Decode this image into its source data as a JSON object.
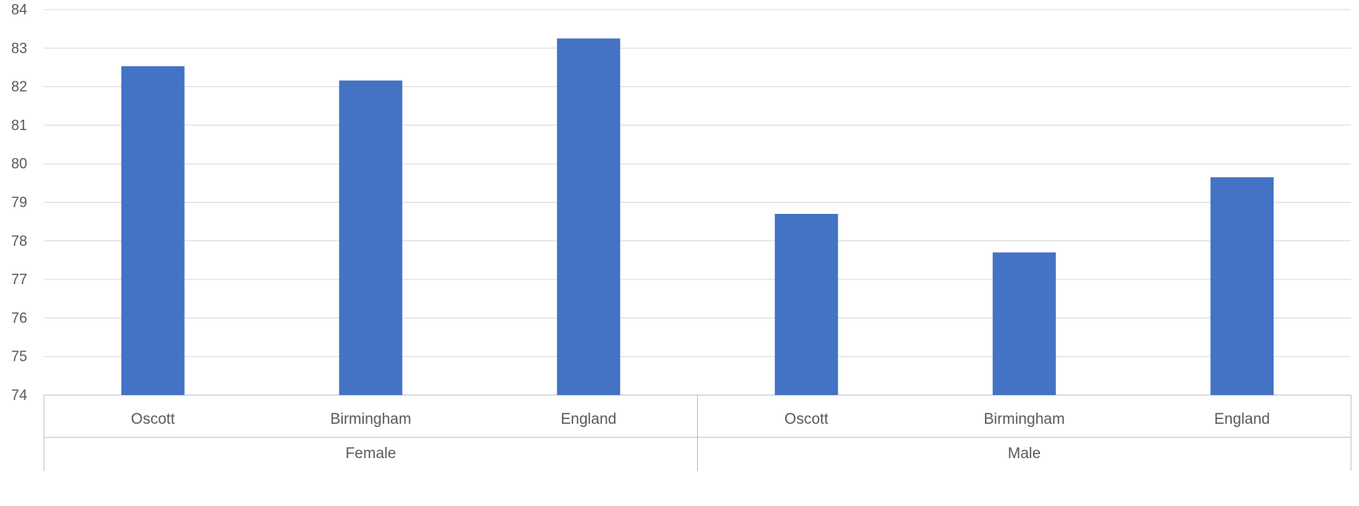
{
  "chart_data": {
    "type": "bar",
    "title": "",
    "xlabel": "",
    "ylabel": "",
    "ylim": [
      74,
      84
    ],
    "y_ticks": [
      74,
      75,
      76,
      77,
      78,
      79,
      80,
      81,
      82,
      83,
      84
    ],
    "grid": true,
    "legend": "none",
    "groups": [
      {
        "label": "Female",
        "categories": [
          "Oscott",
          "Birmingham",
          "England"
        ],
        "values": [
          82.53,
          82.16,
          83.25
        ]
      },
      {
        "label": "Male",
        "categories": [
          "Oscott",
          "Birmingham",
          "England"
        ],
        "values": [
          78.7,
          77.7,
          79.65
        ]
      }
    ],
    "colors": {
      "bar": "#4472C4",
      "gridline": "#D9D9D9",
      "axis_line": "#BFBFBF",
      "text": "#595959"
    }
  }
}
